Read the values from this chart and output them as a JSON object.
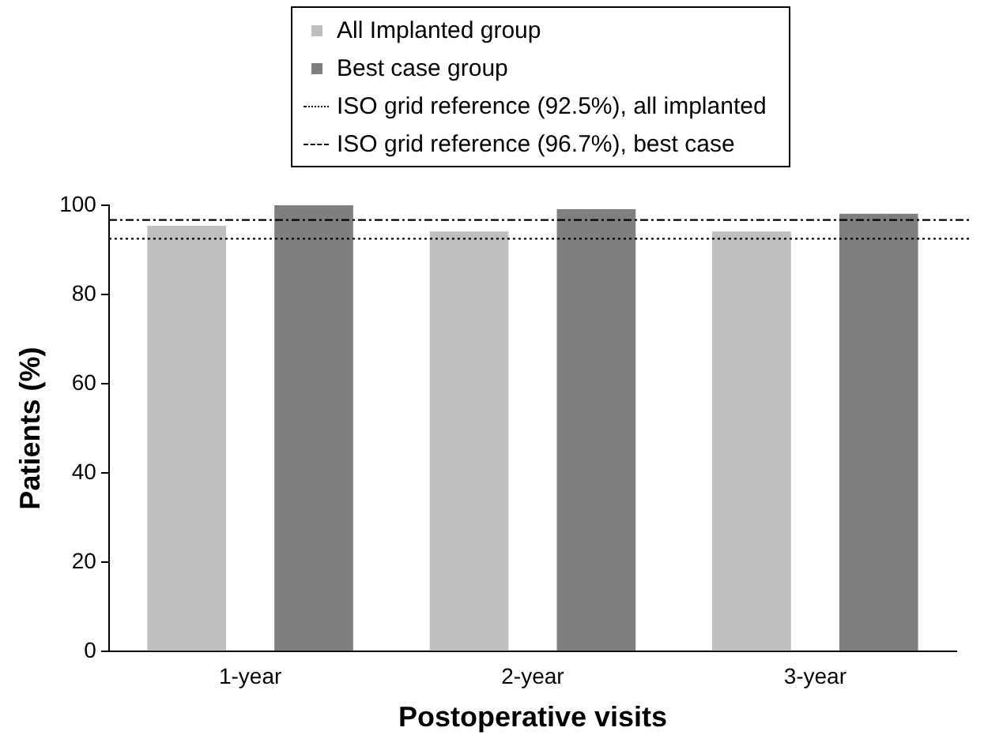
{
  "chart_data": {
    "type": "bar",
    "xlabel": "Postoperative visits",
    "ylabel": "Patients (%)",
    "categories": [
      "1-year",
      "2-year",
      "3-year"
    ],
    "series": [
      {
        "name": "All Implanted group",
        "color": "#bfbfbf",
        "values": [
          95.4,
          94.1,
          94.1
        ]
      },
      {
        "name": "Best case group",
        "color": "#7f7f7f",
        "values": [
          100,
          99.1,
          98.1
        ]
      }
    ],
    "ref_lines": [
      {
        "axis": "y",
        "value": 92.5,
        "label": "ISO grid reference (92.5%), all implanted",
        "color": "#000000",
        "line_style": "dotted"
      },
      {
        "axis": "y",
        "value": 96.7,
        "label": "ISO grid reference (96.7%), best case",
        "color": "#000000",
        "line_style": "dashdot"
      }
    ],
    "ylim": [
      0,
      100
    ],
    "yticks": [
      0,
      20,
      40,
      60,
      80,
      100
    ],
    "grid": false,
    "legend": "top"
  }
}
